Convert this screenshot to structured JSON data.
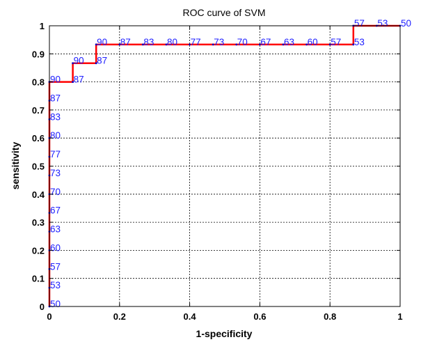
{
  "chart_data": {
    "type": "line",
    "title": "ROC curve of SVM",
    "xlabel": "1-specificity",
    "ylabel": "sensitivity",
    "xlim": [
      0,
      1
    ],
    "ylim": [
      0,
      1
    ],
    "grid": true,
    "x_ticks": [
      "0",
      "0.2",
      "0.4",
      "0.6",
      "0.8",
      "1"
    ],
    "y_ticks": [
      "0",
      "0.1",
      "0.2",
      "0.3",
      "0.4",
      "0.5",
      "0.6",
      "0.7",
      "0.8",
      "0.9",
      "1"
    ],
    "colors": {
      "curve": "#ff0000",
      "labels": "#2020ff",
      "points": "#0000cc"
    },
    "series": [
      {
        "x": [
          0,
          0,
          0.0667,
          0.0667,
          0.1333,
          0.1333,
          0.8667,
          0.8667,
          1
        ],
        "y": [
          0,
          0.8,
          0.8,
          0.8667,
          0.8667,
          0.9333,
          0.9333,
          1,
          1
        ]
      }
    ],
    "points": [
      {
        "x": 0,
        "y": 0.0,
        "label": "50"
      },
      {
        "x": 0,
        "y": 0.0667,
        "label": "53"
      },
      {
        "x": 0,
        "y": 0.1333,
        "label": "57"
      },
      {
        "x": 0,
        "y": 0.2,
        "label": "60"
      },
      {
        "x": 0,
        "y": 0.2667,
        "label": "63"
      },
      {
        "x": 0,
        "y": 0.3333,
        "label": "67"
      },
      {
        "x": 0,
        "y": 0.4,
        "label": "70"
      },
      {
        "x": 0,
        "y": 0.4667,
        "label": "73"
      },
      {
        "x": 0,
        "y": 0.5333,
        "label": "77"
      },
      {
        "x": 0,
        "y": 0.6,
        "label": "80"
      },
      {
        "x": 0,
        "y": 0.6667,
        "label": "83"
      },
      {
        "x": 0,
        "y": 0.7333,
        "label": "87"
      },
      {
        "x": 0,
        "y": 0.8,
        "label": "90"
      },
      {
        "x": 0.0667,
        "y": 0.8,
        "label": "87"
      },
      {
        "x": 0.0667,
        "y": 0.8667,
        "label": "90"
      },
      {
        "x": 0.1333,
        "y": 0.8667,
        "label": "87"
      },
      {
        "x": 0.1333,
        "y": 0.9333,
        "label": "90"
      },
      {
        "x": 0.2,
        "y": 0.9333,
        "label": "87"
      },
      {
        "x": 0.2667,
        "y": 0.9333,
        "label": "83"
      },
      {
        "x": 0.3333,
        "y": 0.9333,
        "label": "80"
      },
      {
        "x": 0.4,
        "y": 0.9333,
        "label": "77"
      },
      {
        "x": 0.4667,
        "y": 0.9333,
        "label": "73"
      },
      {
        "x": 0.5333,
        "y": 0.9333,
        "label": "70"
      },
      {
        "x": 0.6,
        "y": 0.9333,
        "label": "67"
      },
      {
        "x": 0.6667,
        "y": 0.9333,
        "label": "63"
      },
      {
        "x": 0.7333,
        "y": 0.9333,
        "label": "60"
      },
      {
        "x": 0.8,
        "y": 0.9333,
        "label": "57"
      },
      {
        "x": 0.8667,
        "y": 0.9333,
        "label": "53"
      },
      {
        "x": 0.8667,
        "y": 1.0,
        "label": "57"
      },
      {
        "x": 0.9333,
        "y": 1.0,
        "label": "53"
      },
      {
        "x": 1.0,
        "y": 1.0,
        "label": "50"
      }
    ]
  }
}
